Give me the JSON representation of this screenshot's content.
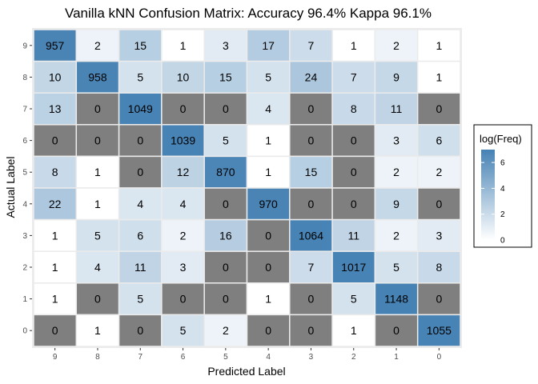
{
  "chart_data": {
    "type": "heatmap",
    "title": "Vanilla kNN Confusion Matrix: Accuracy 96.4% Kappa 96.1%",
    "xlabel": "Predicted Label",
    "ylabel": "Actual Label",
    "x_categories": [
      "9",
      "8",
      "7",
      "6",
      "5",
      "4",
      "3",
      "2",
      "1",
      "0"
    ],
    "y_categories": [
      "9",
      "8",
      "7",
      "6",
      "5",
      "4",
      "3",
      "2",
      "1",
      "0"
    ],
    "values": [
      [
        957,
        2,
        15,
        1,
        3,
        17,
        7,
        1,
        2,
        1
      ],
      [
        10,
        958,
        5,
        10,
        15,
        5,
        24,
        7,
        9,
        1
      ],
      [
        13,
        0,
        1049,
        0,
        0,
        4,
        0,
        8,
        11,
        0
      ],
      [
        0,
        0,
        0,
        1039,
        5,
        1,
        0,
        0,
        3,
        6
      ],
      [
        8,
        1,
        0,
        12,
        870,
        1,
        15,
        0,
        2,
        2
      ],
      [
        22,
        1,
        4,
        4,
        0,
        970,
        0,
        0,
        9,
        0
      ],
      [
        1,
        5,
        6,
        2,
        16,
        0,
        1064,
        11,
        2,
        3
      ],
      [
        1,
        4,
        11,
        3,
        0,
        0,
        7,
        1017,
        5,
        8
      ],
      [
        1,
        0,
        5,
        0,
        0,
        1,
        0,
        5,
        1148,
        0
      ],
      [
        0,
        1,
        0,
        5,
        2,
        0,
        0,
        1,
        0,
        1055
      ]
    ],
    "zero_color": "#7f7f7f",
    "legend": {
      "title": "log(Freq)",
      "ticks": [
        "0",
        "2",
        "4",
        "6"
      ],
      "low_color": "#ffffff",
      "high_color": "#4682b4",
      "placement": "right"
    }
  }
}
